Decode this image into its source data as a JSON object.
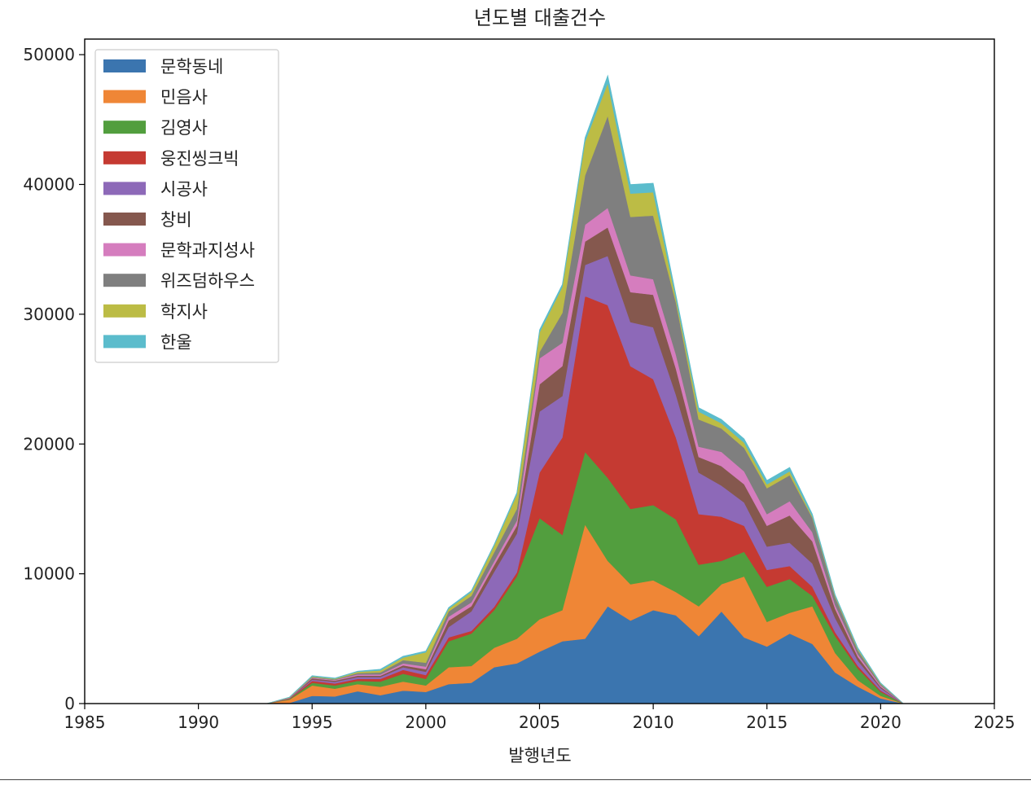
{
  "chart_data": {
    "type": "area",
    "stacked": true,
    "title": "년도별 대출건수",
    "xlabel": "발행년도",
    "ylabel": "",
    "xlim": [
      1985,
      2025
    ],
    "ylim": [
      0,
      51200
    ],
    "x_ticks": [
      "1985",
      "1990",
      "1995",
      "2000",
      "2005",
      "2010",
      "2015",
      "2020",
      "2025"
    ],
    "y_ticks": [
      "0",
      "10000",
      "20000",
      "30000",
      "40000",
      "50000"
    ],
    "legend_position": "top-left",
    "grid": false,
    "x": [
      1985,
      1986,
      1987,
      1988,
      1989,
      1990,
      1991,
      1992,
      1993,
      1994,
      1995,
      1996,
      1997,
      1998,
      1999,
      2000,
      2001,
      2002,
      2003,
      2004,
      2005,
      2006,
      2007,
      2008,
      2009,
      2010,
      2011,
      2012,
      2013,
      2014,
      2015,
      2016,
      2017,
      2018,
      2019,
      2020,
      2021,
      2022,
      2023,
      2024,
      2025
    ],
    "series": [
      {
        "name": "문학동네",
        "color": "#3b75af",
        "values": [
          0,
          0,
          0,
          0,
          0,
          0,
          0,
          0,
          0,
          50,
          600,
          550,
          950,
          650,
          1000,
          900,
          1500,
          1600,
          2800,
          3100,
          4000,
          4800,
          5000,
          7500,
          6400,
          7200,
          6800,
          5200,
          7100,
          5100,
          4400,
          5400,
          4600,
          2400,
          1300,
          400,
          0,
          0,
          0,
          0,
          0
        ]
      },
      {
        "name": "민음사",
        "color": "#ef8636",
        "values": [
          0,
          0,
          0,
          0,
          0,
          0,
          0,
          0,
          0,
          250,
          800,
          600,
          550,
          650,
          700,
          500,
          1300,
          1300,
          1500,
          1900,
          2500,
          2400,
          8800,
          3500,
          2800,
          2300,
          1800,
          2300,
          2100,
          4700,
          1900,
          1600,
          2900,
          1500,
          500,
          200,
          0,
          0,
          0,
          0,
          0
        ]
      },
      {
        "name": "김영사",
        "color": "#529e3e",
        "values": [
          0,
          0,
          0,
          0,
          0,
          0,
          0,
          0,
          0,
          50,
          200,
          250,
          250,
          400,
          600,
          500,
          2000,
          2500,
          2900,
          4800,
          7800,
          5800,
          5600,
          6400,
          5800,
          5800,
          5600,
          3200,
          1800,
          1900,
          2700,
          2600,
          800,
          1300,
          900,
          300,
          0,
          0,
          0,
          0,
          0
        ]
      },
      {
        "name": "웅진씽크빅",
        "color": "#c53a32",
        "values": [
          0,
          0,
          0,
          0,
          0,
          0,
          0,
          0,
          0,
          30,
          150,
          150,
          150,
          200,
          300,
          300,
          300,
          200,
          250,
          300,
          3500,
          7500,
          12000,
          13300,
          11000,
          9700,
          6300,
          3900,
          3400,
          2000,
          1300,
          1000,
          700,
          300,
          200,
          100,
          0,
          0,
          0,
          0,
          0
        ]
      },
      {
        "name": "시공사",
        "color": "#8d69b8",
        "values": [
          0,
          0,
          0,
          0,
          0,
          0,
          0,
          0,
          0,
          20,
          100,
          120,
          150,
          150,
          200,
          250,
          800,
          1500,
          2700,
          3000,
          4700,
          3200,
          2400,
          3800,
          3400,
          4000,
          3300,
          3200,
          2400,
          1800,
          1800,
          1800,
          1800,
          1100,
          400,
          200,
          0,
          0,
          0,
          0,
          0
        ]
      },
      {
        "name": "창비",
        "color": "#85584e",
        "values": [
          0,
          0,
          0,
          0,
          0,
          0,
          0,
          0,
          0,
          20,
          100,
          100,
          100,
          100,
          150,
          200,
          500,
          400,
          500,
          600,
          2100,
          2300,
          1800,
          2200,
          2300,
          2500,
          2000,
          1200,
          1500,
          1400,
          1600,
          2100,
          1700,
          700,
          300,
          100,
          0,
          0,
          0,
          0,
          0
        ]
      },
      {
        "name": "문학과지성사",
        "color": "#d57dbe",
        "values": [
          0,
          0,
          0,
          0,
          0,
          0,
          0,
          0,
          0,
          20,
          50,
          50,
          100,
          100,
          150,
          200,
          300,
          300,
          300,
          400,
          2000,
          1800,
          1300,
          1500,
          1300,
          1200,
          1100,
          800,
          1100,
          1000,
          900,
          1100,
          700,
          300,
          200,
          100,
          0,
          0,
          0,
          0,
          0
        ]
      },
      {
        "name": "위즈덤하우스",
        "color": "#7f7f7f",
        "values": [
          0,
          0,
          0,
          0,
          0,
          0,
          0,
          0,
          0,
          20,
          50,
          50,
          100,
          150,
          250,
          300,
          400,
          500,
          700,
          900,
          500,
          2300,
          3800,
          7100,
          4500,
          4900,
          4000,
          2100,
          1800,
          1800,
          2000,
          2000,
          1100,
          600,
          300,
          100,
          0,
          0,
          0,
          0,
          0
        ]
      },
      {
        "name": "학지사",
        "color": "#bcbc45",
        "values": [
          0,
          0,
          0,
          0,
          0,
          0,
          0,
          0,
          0,
          20,
          50,
          50,
          100,
          150,
          200,
          800,
          200,
          300,
          500,
          1100,
          1500,
          2000,
          2600,
          2500,
          1800,
          1800,
          300,
          600,
          400,
          400,
          300,
          300,
          100,
          100,
          100,
          50,
          0,
          0,
          0,
          0,
          0
        ]
      },
      {
        "name": "한울",
        "color": "#5bbccc",
        "values": [
          0,
          0,
          0,
          0,
          0,
          0,
          0,
          0,
          0,
          20,
          50,
          50,
          50,
          100,
          100,
          100,
          100,
          100,
          100,
          150,
          200,
          200,
          300,
          600,
          700,
          700,
          300,
          300,
          300,
          300,
          300,
          300,
          200,
          100,
          100,
          50,
          0,
          0,
          0,
          0,
          0
        ]
      }
    ]
  }
}
